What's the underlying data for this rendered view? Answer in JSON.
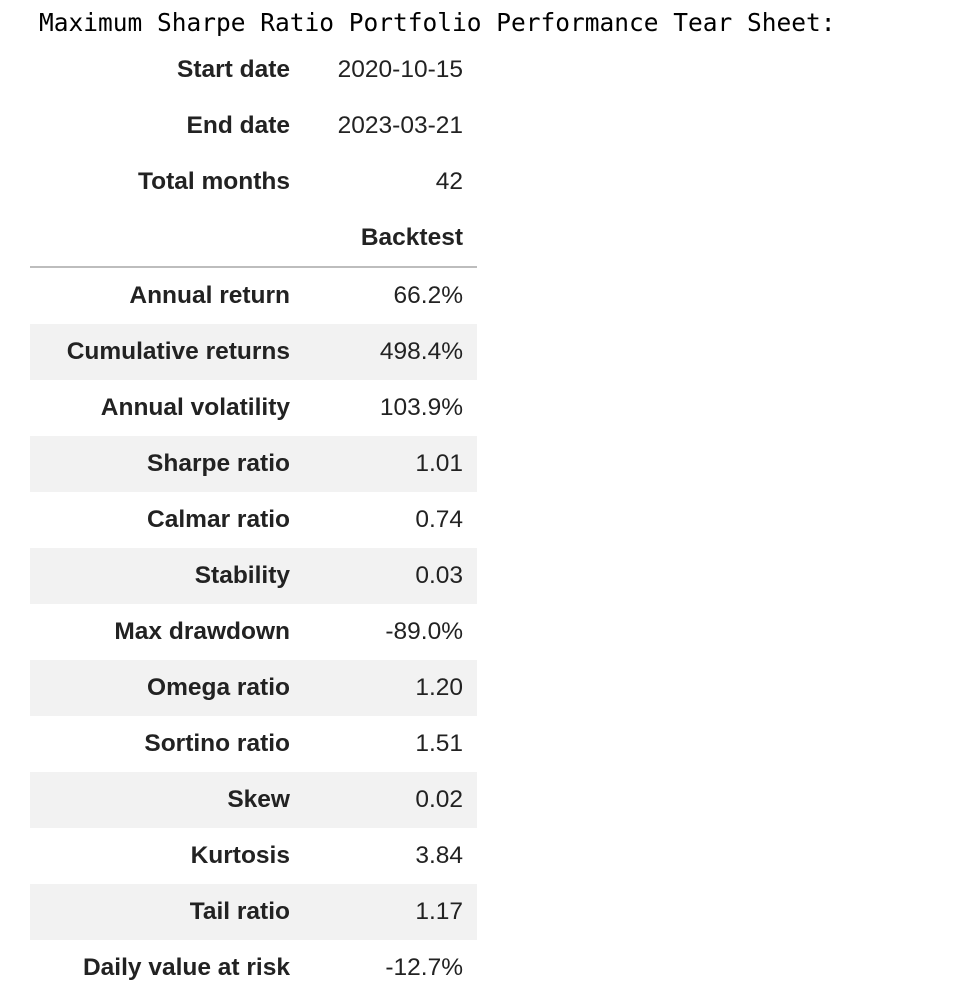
{
  "title": "Maximum Sharpe Ratio Portfolio Performance Tear Sheet:",
  "meta": [
    {
      "label": "Start date",
      "value": "2020-10-15"
    },
    {
      "label": "End date",
      "value": "2023-03-21"
    },
    {
      "label": "Total months",
      "value": "42"
    }
  ],
  "column_header": "Backtest",
  "metrics": [
    {
      "label": "Annual return",
      "value": "66.2%"
    },
    {
      "label": "Cumulative returns",
      "value": "498.4%"
    },
    {
      "label": "Annual volatility",
      "value": "103.9%"
    },
    {
      "label": "Sharpe ratio",
      "value": "1.01"
    },
    {
      "label": "Calmar ratio",
      "value": "0.74"
    },
    {
      "label": "Stability",
      "value": "0.03"
    },
    {
      "label": "Max drawdown",
      "value": "-89.0%"
    },
    {
      "label": "Omega ratio",
      "value": "1.20"
    },
    {
      "label": "Sortino ratio",
      "value": "1.51"
    },
    {
      "label": "Skew",
      "value": "0.02"
    },
    {
      "label": "Kurtosis",
      "value": "3.84"
    },
    {
      "label": "Tail ratio",
      "value": "1.17"
    },
    {
      "label": "Daily value at risk",
      "value": "-12.7%"
    }
  ],
  "colors": {
    "stripe": "#f2f2f2",
    "rule": "#bdbdbd"
  }
}
